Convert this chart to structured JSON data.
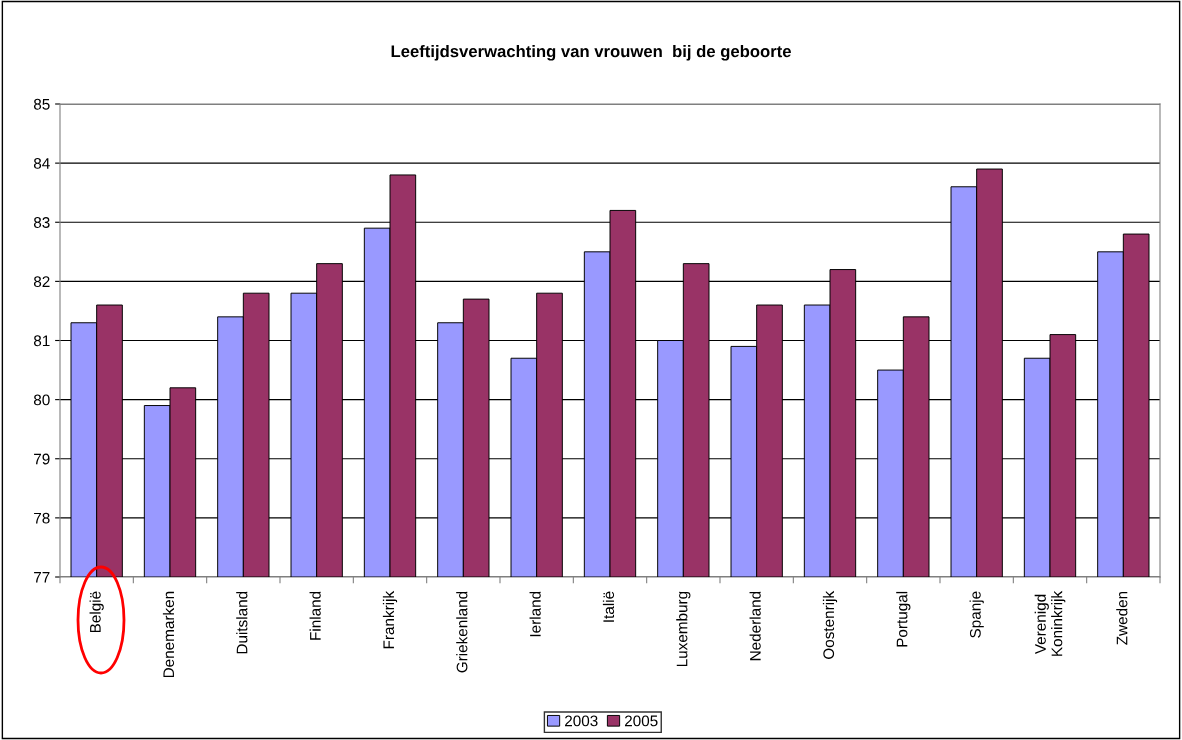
{
  "chart_data": {
    "type": "bar",
    "title": "Leeftijdsverwachting van vrouwen  bij de geboorte",
    "categories": [
      "België",
      "Denemarken",
      "Duitsland",
      "Finland",
      "Frankrijk",
      "Griekenland",
      "Ierland",
      "Italië",
      "Luxemburg",
      "Nederland",
      "Oostenrijk",
      "Portugal",
      "Spanje",
      "Verenigd\nKoninkrijk",
      "Zweden"
    ],
    "series": [
      {
        "name": "2003",
        "color": "#9999ff",
        "values": [
          81.3,
          79.9,
          81.4,
          81.8,
          82.9,
          81.3,
          80.7,
          82.5,
          81.0,
          80.9,
          81.6,
          80.5,
          83.6,
          80.7,
          82.5
        ]
      },
      {
        "name": "2005",
        "color": "#993366",
        "values": [
          81.6,
          80.2,
          81.8,
          82.3,
          83.8,
          81.7,
          81.8,
          83.2,
          82.3,
          81.6,
          82.2,
          81.4,
          83.9,
          81.1,
          82.8
        ]
      }
    ],
    "ylim": [
      77,
      85
    ],
    "yticks": [
      77,
      78,
      79,
      80,
      81,
      82,
      83,
      84,
      85
    ],
    "grid": "y",
    "legend": "bottom"
  }
}
